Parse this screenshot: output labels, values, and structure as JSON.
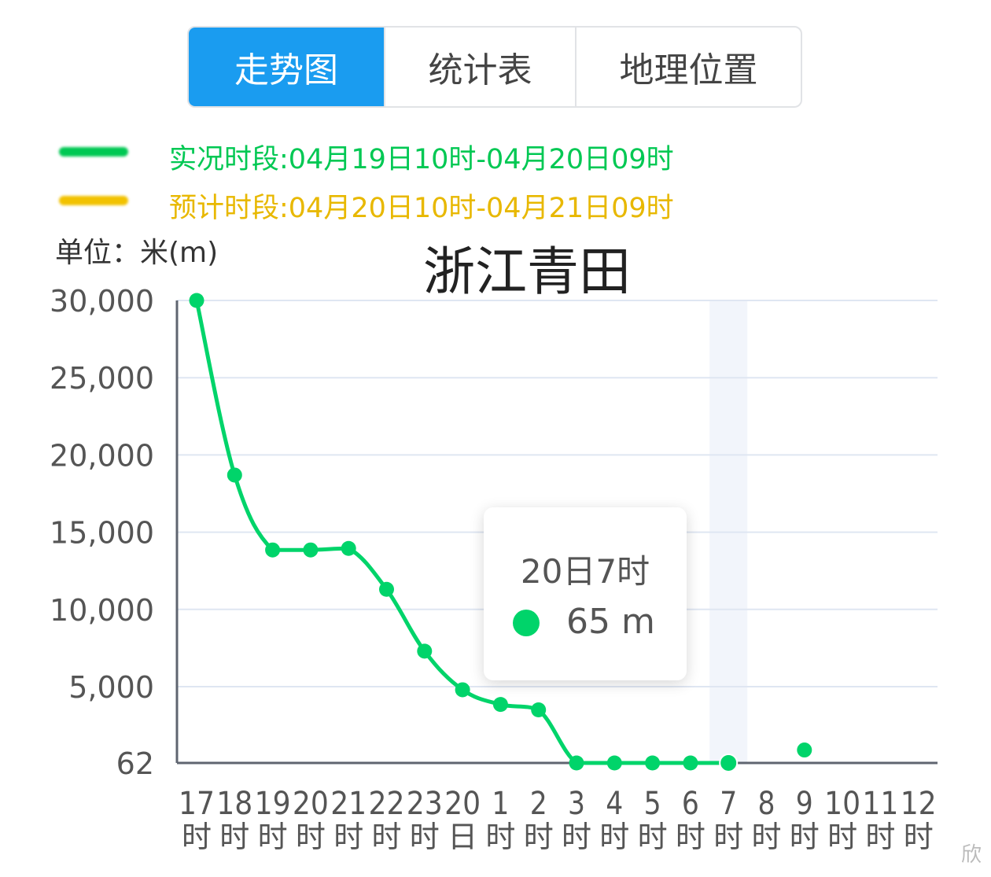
{
  "tabs": [
    {
      "label": "走势图",
      "active": true
    },
    {
      "label": "统计表",
      "active": false
    },
    {
      "label": "地理位置",
      "active": false
    }
  ],
  "legend": [
    {
      "text": "实况时段:04月19日10时-04月20日09时",
      "color": "#00c853"
    },
    {
      "text": "预计时段:04月20日10时-04月21日09时",
      "color": "#f2c200"
    }
  ],
  "unit_label": "单位：米(m)",
  "tooltip": {
    "title": "20日7时",
    "value": "65 m"
  },
  "watermark": "欣",
  "colors": {
    "line": "#00d46a",
    "axis": "#5f6570",
    "grid": "#dfe6f2",
    "highlight": "#f2f5fb"
  },
  "chart_data": {
    "type": "line",
    "title": "浙江青田",
    "ylabel": "单位：米(m)",
    "categories": [
      [
        "17",
        "时"
      ],
      [
        "18",
        "时"
      ],
      [
        "19",
        "时"
      ],
      [
        "20",
        "时"
      ],
      [
        "21",
        "时"
      ],
      [
        "22",
        "时"
      ],
      [
        "23",
        "时"
      ],
      [
        "20",
        "日"
      ],
      [
        "1",
        "时"
      ],
      [
        "2",
        "时"
      ],
      [
        "3",
        "时"
      ],
      [
        "4",
        "时"
      ],
      [
        "5",
        "时"
      ],
      [
        "6",
        "时"
      ],
      [
        "7",
        "时"
      ],
      [
        "8",
        "时"
      ],
      [
        "9",
        "时"
      ],
      [
        "10",
        "时"
      ],
      [
        "11",
        "时"
      ],
      [
        "12",
        "时"
      ]
    ],
    "y_ticks": [
      "62",
      "5,000",
      "10,000",
      "15,000",
      "20,000",
      "25,000",
      "30,000"
    ],
    "y_tick_values": [
      62,
      5000,
      10000,
      15000,
      20000,
      25000,
      30000
    ],
    "ylim": [
      62,
      30000
    ],
    "highlight_category": 14,
    "series": [
      {
        "values": [
          30000,
          18700,
          13850,
          13850,
          13950,
          11300,
          7300,
          4800,
          3850,
          3500,
          62,
          62,
          62,
          62,
          65,
          null,
          900,
          null,
          null,
          null
        ]
      }
    ],
    "grid": true
  }
}
